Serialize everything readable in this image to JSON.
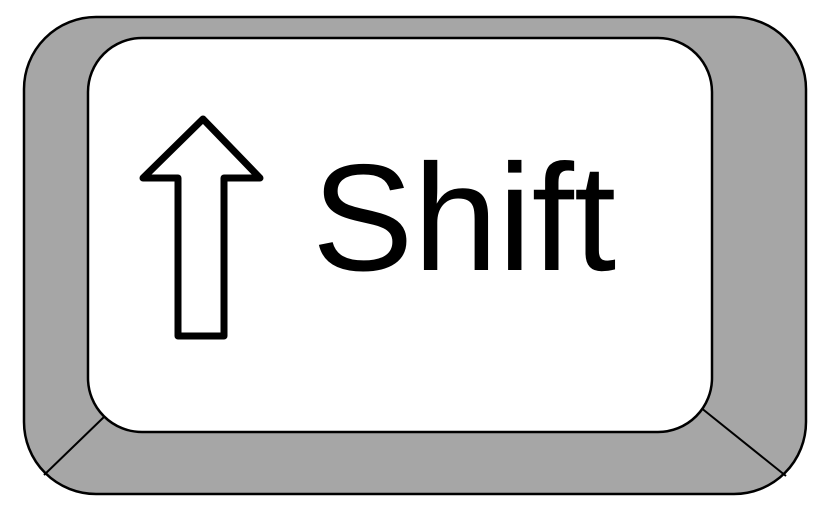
{
  "key": {
    "label": "Shift",
    "icon": "up-arrow-icon",
    "colors": {
      "keycap_side": "#a6a6a6",
      "keycap_top": "#ffffff",
      "outline": "#000000",
      "label": "#000000"
    }
  }
}
